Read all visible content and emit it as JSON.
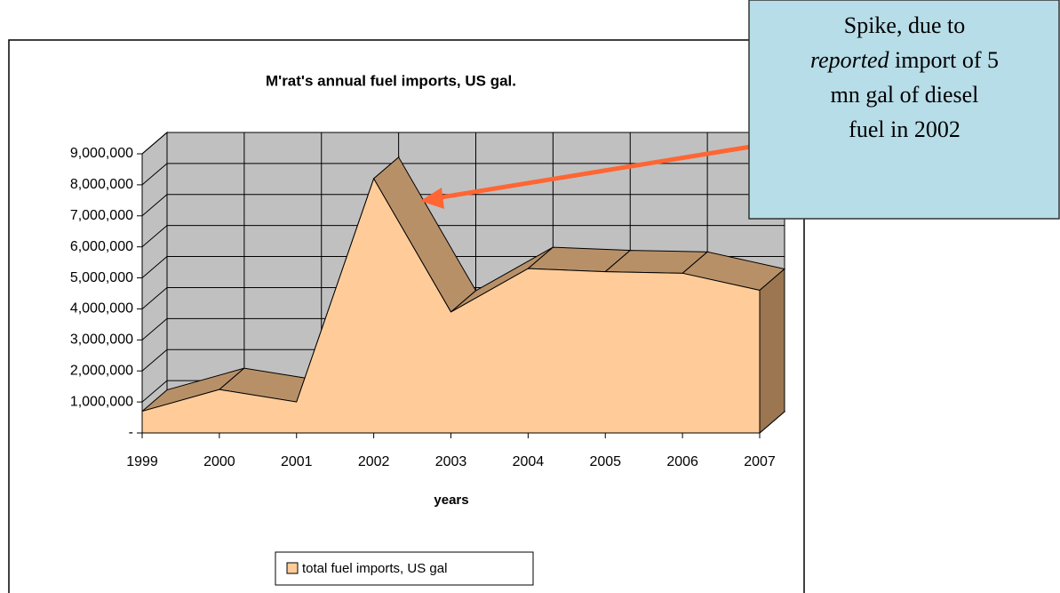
{
  "chart_data": {
    "type": "area3d",
    "title": "M'rat's annual fuel imports, US gal.",
    "x_label": "years",
    "categories": [
      "1999",
      "2000",
      "2001",
      "2002",
      "2003",
      "2004",
      "2005",
      "2006",
      "2007"
    ],
    "series": [
      {
        "name": "total fuel imports, US gal",
        "color": "#ffcc99",
        "values": [
          700000,
          1400000,
          1000000,
          8200000,
          3900000,
          5300000,
          5200000,
          5150000,
          4600000
        ]
      }
    ],
    "ylim": [
      0,
      9000000
    ],
    "yticks": [
      {
        "value": 0,
        "label": "-"
      },
      {
        "value": 1000000,
        "label": "1,000,000"
      },
      {
        "value": 2000000,
        "label": "2,000,000"
      },
      {
        "value": 3000000,
        "label": "3,000,000"
      },
      {
        "value": 4000000,
        "label": "4,000,000"
      },
      {
        "value": 5000000,
        "label": "5,000,000"
      },
      {
        "value": 6000000,
        "label": "6,000,000"
      },
      {
        "value": 7000000,
        "label": "7,000,000"
      },
      {
        "value": 8000000,
        "label": "8,000,000"
      },
      {
        "value": 9000000,
        "label": "9,000,000"
      }
    ],
    "grid": true,
    "legend": "bottom",
    "annotation_lines": [
      [
        "Spike, due to"
      ],
      [
        "reported",
        " import of 5"
      ],
      [
        "mn gal of diesel"
      ],
      [
        "fuel in 2002"
      ]
    ]
  }
}
